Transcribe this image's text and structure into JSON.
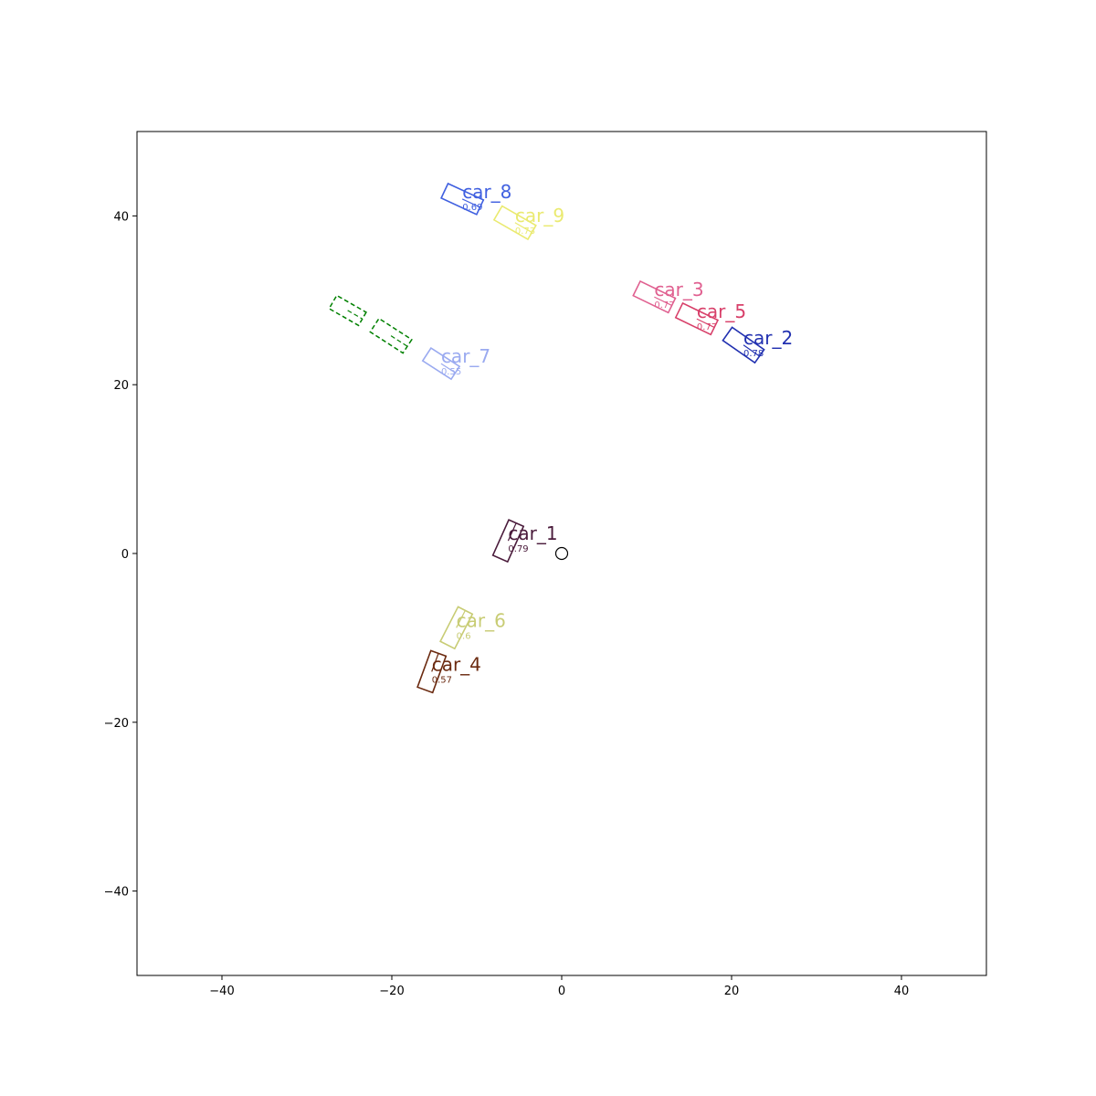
{
  "chart_data": {
    "type": "scatter",
    "title": "",
    "xlabel": "",
    "ylabel": "",
    "xlim": [
      -50,
      50
    ],
    "ylim": [
      -50,
      50
    ],
    "grid": false,
    "xticks": [
      -40,
      -20,
      0,
      20,
      40
    ],
    "yticks": [
      -40,
      -20,
      0,
      20,
      40
    ],
    "xtick_labels": [
      "−40",
      "−20",
      "0",
      "20",
      "40"
    ],
    "ytick_labels": [
      "−40",
      "−20",
      "0",
      "20",
      "40"
    ],
    "ego": {
      "x": 0,
      "y": 0,
      "marker": "circle"
    },
    "detections": [
      {
        "label": "car_1",
        "score": "0.79",
        "x": -6.3,
        "y": 1.5,
        "heading_deg": 66,
        "length": 4.6,
        "width": 1.9,
        "color": "#4a1b3b"
      },
      {
        "label": "car_2",
        "score": "0.78",
        "x": 21.4,
        "y": 24.7,
        "heading_deg": -35,
        "length": 4.6,
        "width": 1.9,
        "color": "#2130b0"
      },
      {
        "label": "car_3",
        "score": "0.77",
        "x": 10.9,
        "y": 30.4,
        "heading_deg": -26,
        "length": 4.6,
        "width": 1.9,
        "color": "#e06090"
      },
      {
        "label": "car_4",
        "score": "0.57",
        "x": -15.3,
        "y": -14.0,
        "heading_deg": 70,
        "length": 4.6,
        "width": 1.9,
        "color": "#6b2a10"
      },
      {
        "label": "car_5",
        "score": "0.77",
        "x": 15.9,
        "y": 27.8,
        "heading_deg": -26,
        "length": 4.6,
        "width": 1.9,
        "color": "#d8406a"
      },
      {
        "label": "car_6",
        "score": "0.6",
        "x": -12.4,
        "y": -8.8,
        "heading_deg": 63,
        "length": 4.6,
        "width": 1.9,
        "color": "#c8cc74"
      },
      {
        "label": "car_7",
        "score": "0.55",
        "x": -14.2,
        "y": 22.5,
        "heading_deg": -33,
        "length": 4.0,
        "width": 1.8,
        "color": "#9aaaf0"
      },
      {
        "label": "car_8",
        "score": "0.69",
        "x": -11.7,
        "y": 42.0,
        "heading_deg": -25,
        "length": 4.6,
        "width": 1.9,
        "color": "#4060e0"
      },
      {
        "label": "car_9",
        "score": "0.73",
        "x": -5.5,
        "y": 39.2,
        "heading_deg": -30,
        "length": 4.6,
        "width": 1.9,
        "color": "#eaea70"
      }
    ],
    "ground_truth": [
      {
        "x": -25.2,
        "y": 28.8,
        "heading_deg": -30,
        "length": 4.0,
        "width": 1.8,
        "color": "#008000"
      },
      {
        "x": -20.1,
        "y": 25.8,
        "heading_deg": -33,
        "length": 4.6,
        "width": 1.9,
        "color": "#008000"
      }
    ]
  }
}
